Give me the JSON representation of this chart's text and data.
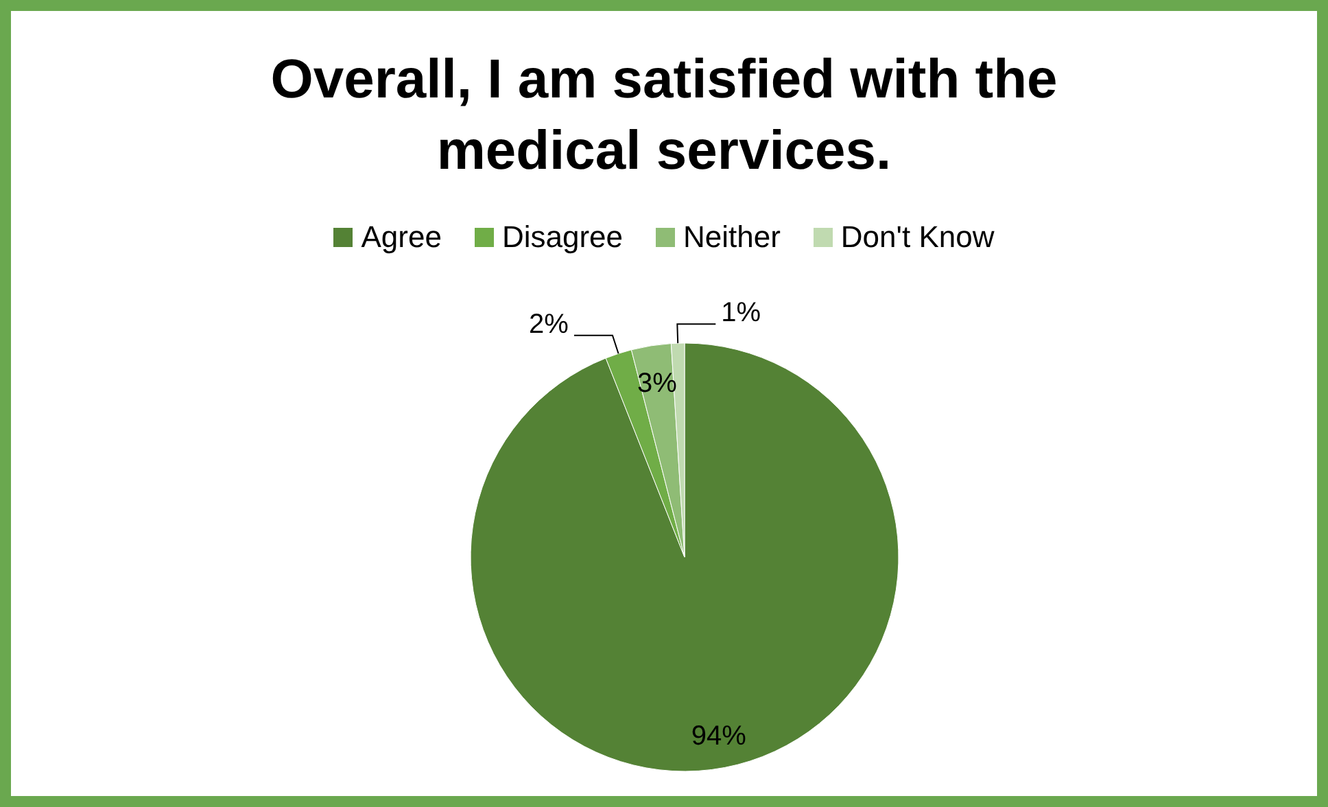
{
  "chart_data": {
    "type": "pie",
    "title": "Overall, I am satisfied with the medical services.",
    "categories": [
      "Agree",
      "Disagree",
      "Neither",
      "Don't Know"
    ],
    "values": [
      94,
      2,
      3,
      1
    ],
    "colors": [
      "#548235",
      "#70ad47",
      "#8fbc75",
      "#c0dab0"
    ],
    "value_labels": [
      "94%",
      "2%",
      "3%",
      "1%"
    ],
    "legend": "top"
  }
}
